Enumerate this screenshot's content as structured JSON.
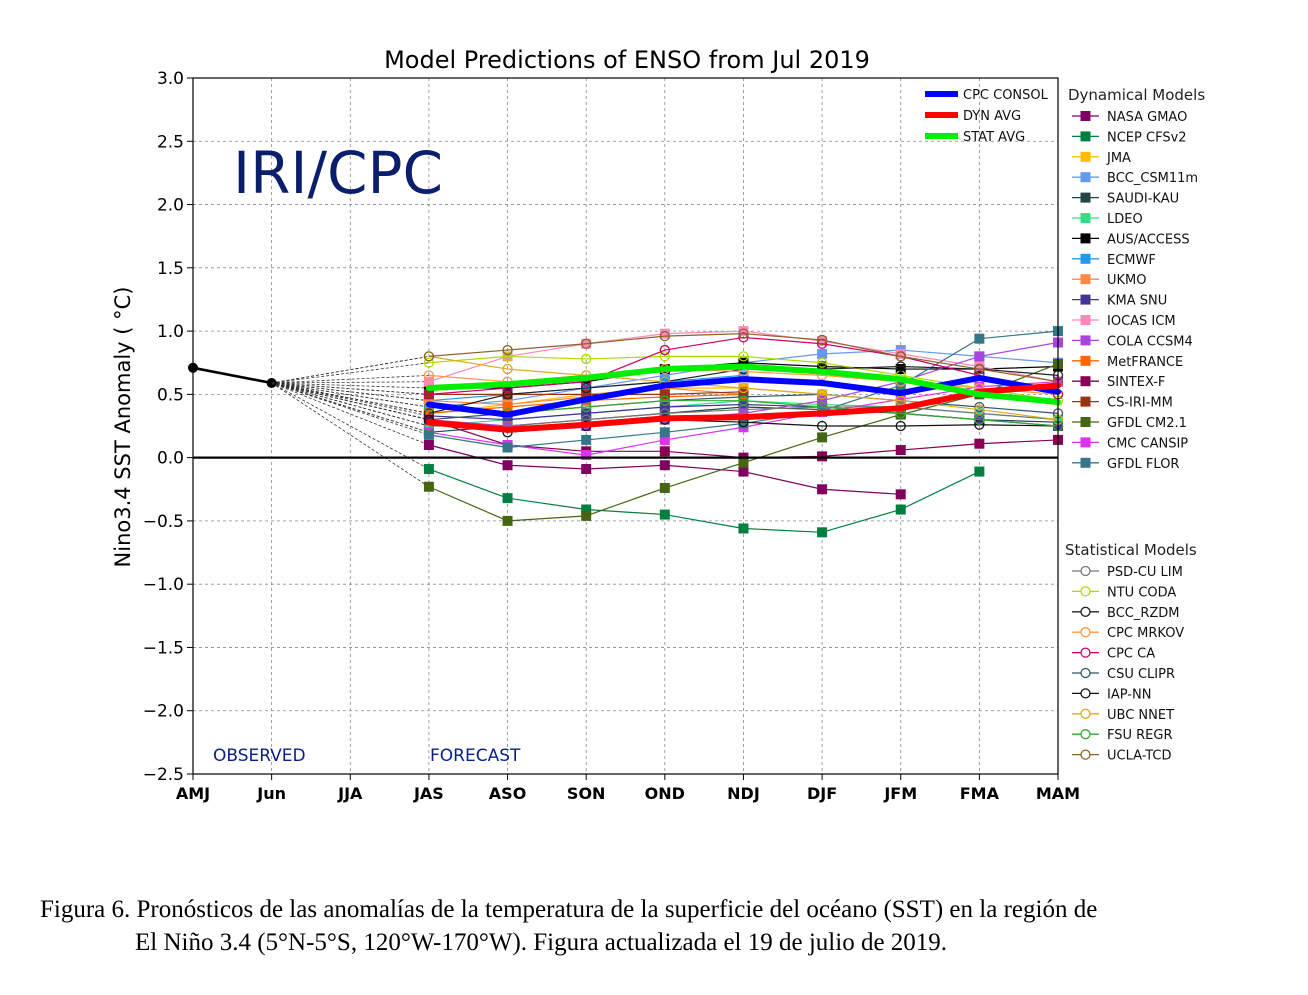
{
  "chart_data": {
    "type": "line",
    "title": "Model Predictions of ENSO from Jul 2019",
    "ylabel": "Nino3.4 SST Anomaly ( °C)",
    "xlabel": "",
    "ylim": [
      -2.5,
      3.0
    ],
    "yticks": [
      3.0,
      2.5,
      2.0,
      1.5,
      1.0,
      0.5,
      0.0,
      -0.5,
      -1.0,
      -1.5,
      -2.0,
      -2.5
    ],
    "ytick_labels": [
      "3.0",
      "2.5",
      "2.0",
      "1.5",
      "1.0",
      "0.5",
      "0.0",
      "−0.5",
      "−1.0",
      "−1.5",
      "−2.0",
      "−2.5"
    ],
    "categories": [
      "AMJ",
      "Jun",
      "JJA",
      "JAS",
      "ASO",
      "SON",
      "OND",
      "NDJ",
      "DJF",
      "JFM",
      "FMA",
      "MAM"
    ],
    "grid": true,
    "watermark": "IRI/CPC",
    "annotations": {
      "observed": "OBSERVED",
      "forecast": "FORECAST"
    },
    "observed": {
      "x": [
        0,
        1
      ],
      "values": [
        0.71,
        0.59
      ],
      "color": "#000000"
    },
    "consensus_series": [
      {
        "name": "CPC CONSOL",
        "color": "#0000ff",
        "values": [
          0.42,
          0.34,
          0.46,
          0.57,
          0.62,
          0.59,
          0.51,
          0.63,
          0.52
        ]
      },
      {
        "name": "DYN AVG",
        "color": "#ff0000",
        "values": [
          0.28,
          0.22,
          0.26,
          0.31,
          0.32,
          0.35,
          0.39,
          0.52,
          0.57
        ]
      },
      {
        "name": "STAT AVG",
        "color": "#00ee00",
        "values": [
          0.55,
          0.58,
          0.63,
          0.7,
          0.72,
          0.68,
          0.62,
          0.5,
          0.44
        ]
      }
    ],
    "dynamical_legend_title": "Dynamical Models",
    "dynamical_series": [
      {
        "name": "NASA GMAO",
        "color": "#800060",
        "values": [
          0.1,
          -0.06,
          -0.09,
          -0.06,
          -0.11,
          -0.25,
          -0.29
        ]
      },
      {
        "name": "NCEP CFSv2",
        "color": "#008040",
        "values": [
          -0.09,
          -0.32,
          -0.41,
          -0.45,
          -0.56,
          -0.59,
          -0.41,
          -0.11
        ]
      },
      {
        "name": "JMA",
        "color": "#ffbb00",
        "values": [
          0.35,
          0.42,
          0.5,
          0.55,
          0.55,
          0.5
        ]
      },
      {
        "name": "BCC_CSM11m",
        "color": "#6699ee",
        "values": [
          0.4,
          0.45,
          0.55,
          0.65,
          0.75,
          0.82,
          0.85,
          0.8,
          0.75
        ]
      },
      {
        "name": "SAUDI-KAU",
        "color": "#224444",
        "values": [
          0.2,
          0.25,
          0.3,
          0.35,
          0.4,
          0.38,
          0.35,
          0.3,
          0.28
        ]
      },
      {
        "name": "LDEO",
        "color": "#33dd88",
        "values": [
          0.25,
          0.3,
          0.35,
          0.4,
          0.45,
          0.42,
          0.4,
          0.35,
          0.3
        ]
      },
      {
        "name": "AUS/ACCESS",
        "color": "#000000",
        "values": [
          0.55,
          0.55,
          0.6,
          0.7,
          0.75,
          0.72,
          0.7,
          0.7,
          0.72
        ]
      },
      {
        "name": "ECMWF",
        "color": "#2299ee",
        "values": [
          0.45,
          0.5,
          0.55,
          0.6,
          0.65
        ]
      },
      {
        "name": "UKMO",
        "color": "#ff8844",
        "values": [
          0.45,
          0.42,
          0.48,
          0.55,
          0.5
        ]
      },
      {
        "name": "KMA SNU",
        "color": "#443399",
        "values": [
          0.33,
          0.3,
          0.35,
          0.4,
          0.42,
          0.4,
          0.35,
          0.3,
          0.25
        ]
      },
      {
        "name": "IOCAS ICM",
        "color": "#ff88bb",
        "values": [
          0.6,
          0.8,
          0.9,
          0.98,
          1.0,
          0.92,
          0.82,
          0.72,
          0.6
        ]
      },
      {
        "name": "COLA CCSM4",
        "color": "#aa44dd",
        "values": [
          0.3,
          0.25,
          0.25,
          0.3,
          0.35,
          0.45,
          0.6,
          0.8,
          0.91
        ]
      },
      {
        "name": "MetFRANCE",
        "color": "#ff6600",
        "values": [
          0.35,
          0.4,
          0.45,
          0.48,
          0.5
        ]
      },
      {
        "name": "SINTEX-F",
        "color": "#880055",
        "values": [
          0.3,
          0.1,
          0.05,
          0.05,
          0.0,
          0.01,
          0.06,
          0.11,
          0.14
        ]
      },
      {
        "name": "CS-IRI-MM",
        "color": "#993311",
        "values": [
          0.5,
          0.5,
          0.5,
          0.5,
          0.52
        ]
      },
      {
        "name": "GFDL CM2.1",
        "color": "#446611",
        "values": [
          -0.23,
          -0.5,
          -0.46,
          -0.24,
          -0.04,
          0.16,
          0.34,
          0.5,
          0.74
        ]
      },
      {
        "name": "CMC CANSIP",
        "color": "#dd33ee",
        "values": [
          0.2,
          0.1,
          0.02,
          0.14,
          0.24,
          0.36,
          0.46,
          0.56,
          0.6
        ]
      },
      {
        "name": "GFDL FLOR",
        "color": "#337788",
        "values": [
          0.18,
          0.08,
          0.14,
          0.2,
          0.27,
          0.37,
          0.57,
          0.94,
          1.0
        ]
      }
    ],
    "statistical_legend_title": "Statistical Models",
    "statistical_series": [
      {
        "name": "PSD-CU LIM",
        "color": "#777777",
        "values": [
          0.25,
          0.25,
          0.3,
          0.35,
          0.38,
          0.4,
          0.4,
          0.35,
          0.3
        ]
      },
      {
        "name": "NTU CODA",
        "color": "#aadd00",
        "values": [
          0.75,
          0.8,
          0.78,
          0.8,
          0.8,
          0.75,
          0.65,
          0.55,
          0.45
        ]
      },
      {
        "name": "BCC_RZDM",
        "color": "#222222",
        "values": [
          0.35,
          0.5,
          0.55,
          0.6,
          0.7,
          0.7,
          0.72,
          0.7,
          0.65
        ]
      },
      {
        "name": "CPC MRKOV",
        "color": "#ff9944",
        "values": [
          0.65,
          0.6,
          0.65,
          0.7,
          0.68,
          0.65,
          0.6,
          0.55,
          0.5
        ]
      },
      {
        "name": "CPC CA",
        "color": "#cc0066",
        "values": [
          0.5,
          0.55,
          0.6,
          0.85,
          0.95,
          0.9,
          0.8,
          0.65,
          0.5
        ]
      },
      {
        "name": "CSU CLIPR",
        "color": "#335566",
        "values": [
          0.3,
          0.35,
          0.4,
          0.45,
          0.48,
          0.5,
          0.45,
          0.4,
          0.35
        ]
      },
      {
        "name": "IAP-NN",
        "color": "#111111",
        "values": [
          0.3,
          0.2,
          0.25,
          0.3,
          0.28,
          0.25,
          0.25,
          0.26,
          0.25
        ]
      },
      {
        "name": "UBC NNET",
        "color": "#ddaa22",
        "values": [
          0.8,
          0.7,
          0.65,
          0.6,
          0.55,
          0.5,
          0.45,
          0.38,
          0.3
        ]
      },
      {
        "name": "FSU REGR",
        "color": "#33aa33",
        "values": [
          0.4,
          0.35,
          0.4,
          0.45,
          0.45,
          0.4,
          0.35,
          0.3,
          0.25
        ]
      },
      {
        "name": "UCLA-TCD",
        "color": "#886622",
        "values": [
          0.8,
          0.85,
          0.9,
          0.96,
          0.98,
          0.93,
          0.8,
          0.7,
          0.6
        ]
      }
    ]
  },
  "caption": {
    "line1": "Figura 6. Pronósticos de las anomalías de la temperatura de la superficie del océano (SST) en la región de",
    "line2": "El Niño 3.4 (5°N-5°S, 120°W-170°W). Figura actualizada el 19 de julio de 2019."
  }
}
